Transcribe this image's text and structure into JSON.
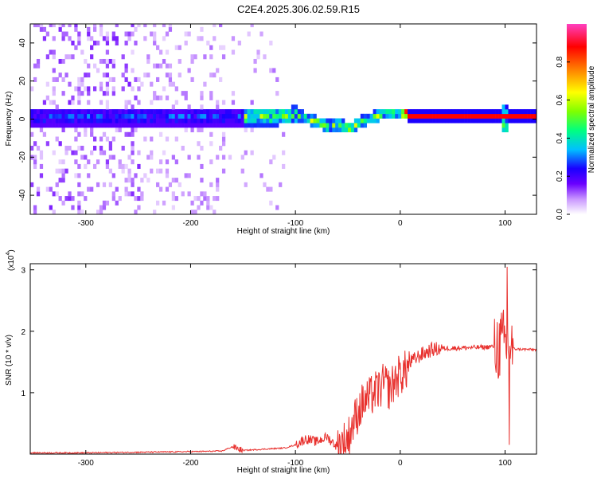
{
  "title": "C2E4.2025.306.02.59.R15",
  "chart_data": [
    {
      "type": "heatmap",
      "xlabel": "Height of straight line (km)",
      "ylabel": "Frequency (Hz)",
      "xlim": [
        -353,
        130
      ],
      "ylim": [
        -50,
        50
      ],
      "xticks": [
        -300,
        -200,
        -100,
        0,
        100
      ],
      "yticks": [
        -40,
        -20,
        0,
        20,
        40
      ],
      "grid": false,
      "colorbar": {
        "label": "Normalized spectral amplitude",
        "range": [
          0,
          1
        ],
        "ticks": [
          0.0,
          0.2,
          0.4,
          0.6,
          0.8
        ],
        "colormap": [
          "#ffffff",
          "#c996ff",
          "#6a00ff",
          "#1a00ff",
          "#00c0ff",
          "#00ff80",
          "#7fff00",
          "#ffff00",
          "#ff8000",
          "#ff0000",
          "#ff40c0"
        ]
      },
      "centerline": {
        "x": [
          -353,
          -300,
          -250,
          -200,
          -150,
          -120,
          -100,
          -80,
          -70,
          -60,
          -50,
          -40,
          -30,
          -20,
          -10,
          0,
          10,
          50,
          100,
          130
        ],
        "y": [
          0,
          0,
          0,
          0,
          0,
          0,
          1,
          -3,
          -5,
          -4,
          -6,
          -3,
          -1,
          1,
          2,
          1,
          0,
          0,
          0,
          0
        ]
      }
    },
    {
      "type": "line",
      "xlabel": "Height of straight line (km)",
      "ylabel": "SNR (10 * v/v)",
      "scale_label": "(x10",
      "scale_exp": "4",
      "scale_close": ")",
      "xlim": [
        -353,
        130
      ],
      "ylim": [
        0,
        3.1
      ],
      "xticks": [
        -300,
        -200,
        -100,
        0,
        100
      ],
      "yticks": [
        1,
        2,
        3
      ],
      "grid": false,
      "series": [
        {
          "color": "#e8312e",
          "x": [
            -353,
            -300,
            -250,
            -200,
            -170,
            -160,
            -150,
            -130,
            -110,
            -100,
            -90,
            -80,
            -70,
            -60,
            -50,
            -45,
            -40,
            -35,
            -30,
            -25,
            -20,
            -15,
            -10,
            -5,
            0,
            5,
            10,
            20,
            30,
            40,
            60,
            80,
            95,
            100,
            103,
            105,
            110,
            130
          ],
          "y": [
            0.02,
            0.02,
            0.03,
            0.04,
            0.05,
            0.12,
            0.06,
            0.08,
            0.1,
            0.15,
            0.25,
            0.2,
            0.28,
            0.12,
            0.25,
            0.5,
            0.7,
            0.85,
            0.9,
            1.0,
            1.05,
            1.15,
            1.05,
            1.2,
            1.3,
            1.35,
            1.5,
            1.62,
            1.7,
            1.72,
            1.73,
            1.74,
            1.76,
            1.8,
            1.75,
            1.72,
            1.71,
            1.7
          ]
        }
      ]
    }
  ]
}
